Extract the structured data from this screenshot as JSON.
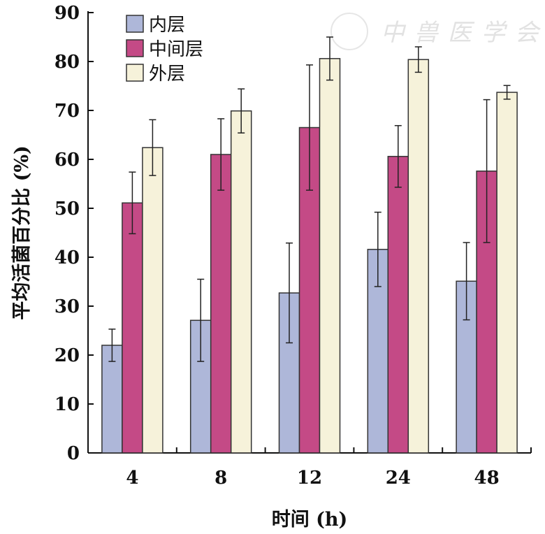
{
  "watermark": "中兽医学会",
  "chart_data": {
    "type": "bar",
    "title": "",
    "xlabel": "时间 (h)",
    "ylabel": "平均活菌百分比 (%)",
    "ylim": [
      0,
      90
    ],
    "yticks": [
      0,
      10,
      20,
      30,
      40,
      50,
      60,
      70,
      80,
      90
    ],
    "categories": [
      "4",
      "8",
      "12",
      "24",
      "48"
    ],
    "legend_position": "top-left",
    "series": [
      {
        "name": "内层",
        "color": "#aeb7d9",
        "values": [
          22.0,
          27.1,
          32.7,
          41.6,
          35.1
        ],
        "errors": [
          3.3,
          8.4,
          10.2,
          7.6,
          7.9
        ]
      },
      {
        "name": "中间层",
        "color": "#c44a86",
        "values": [
          51.1,
          61.0,
          66.5,
          60.6,
          57.6
        ],
        "errors": [
          6.3,
          7.3,
          12.8,
          6.3,
          14.6
        ]
      },
      {
        "name": "外层",
        "color": "#f6f2da",
        "values": [
          62.4,
          69.9,
          80.6,
          80.4,
          73.7
        ],
        "errors": [
          5.7,
          4.5,
          4.4,
          2.6,
          1.4
        ]
      }
    ]
  }
}
